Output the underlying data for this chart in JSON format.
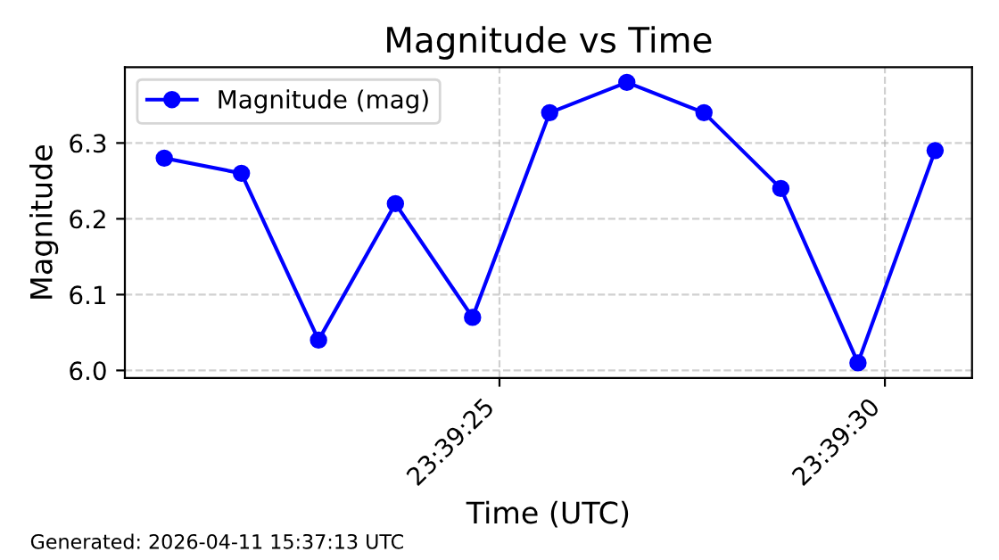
{
  "chart_data": {
    "type": "line",
    "title": "Magnitude vs Time",
    "xlabel": "Time (UTC)",
    "ylabel": "Magnitude",
    "x": [
      23.655736,
      23.656014,
      23.656292,
      23.656569,
      23.656847,
      23.657125,
      23.657403,
      23.657681,
      23.657958,
      23.658236,
      23.658514
    ],
    "series": [
      {
        "name": "Magnitude (mag)",
        "color": "#0000ff",
        "values": [
          6.28,
          6.26,
          6.04,
          6.22,
          6.07,
          6.34,
          6.38,
          6.34,
          6.24,
          6.01,
          6.29
        ]
      }
    ],
    "xlim": [
      23.655594,
      23.658647
    ],
    "xticks": [
      {
        "value": 23.656944,
        "label": "23:39:25"
      },
      {
        "value": 23.658333,
        "label": "23:39:30"
      }
    ],
    "ylim": [
      5.99,
      6.4
    ],
    "yticks": [
      {
        "value": 6,
        "label": "6.0"
      },
      6.1,
      6.2,
      6.3
    ],
    "grid": true,
    "legend": "top left",
    "marker": "circle",
    "line_style": "solid",
    "annotations": [
      "Generated: 2026-04-11 15:37:13 UTC"
    ]
  }
}
